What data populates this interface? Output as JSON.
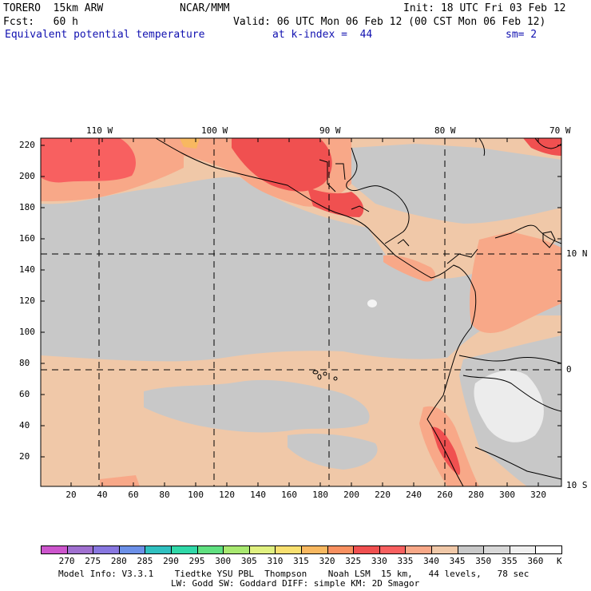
{
  "header": {
    "model": "TORERO  15km ARW",
    "org": "NCAR/MMM",
    "init": "Init: 18 UTC Fri 03 Feb 12",
    "fcst": "Fcst:   60 h",
    "valid": "Valid: 06 UTC Mon 06 Feb 12 (00 CST Mon 06 Feb 12)",
    "field": "Equivalent potential temperature",
    "kindex": "at k-index =  44",
    "sm": "sm= 2"
  },
  "map": {
    "top_lon_labels": [
      "110 W",
      "100 W",
      "90 W",
      "80 W",
      "70 W"
    ],
    "right_lat_labels": [
      "10 N",
      "0",
      "10 S"
    ],
    "left_ticks": [
      "220",
      "200",
      "180",
      "160",
      "140",
      "120",
      "100",
      "80",
      "60",
      "40",
      "20"
    ],
    "bottom_ticks": [
      "20",
      "40",
      "60",
      "80",
      "100",
      "120",
      "140",
      "160",
      "180",
      "200",
      "220",
      "240",
      "260",
      "280",
      "300",
      "320"
    ]
  },
  "colorbar": {
    "unit": "K",
    "labels": [
      "270",
      "275",
      "280",
      "285",
      "290",
      "295",
      "300",
      "305",
      "310",
      "315",
      "320",
      "325",
      "330",
      "335",
      "340",
      "345",
      "350",
      "355",
      "360"
    ],
    "colors": [
      "#cc55cc",
      "#a070d0",
      "#8877e0",
      "#6c90e8",
      "#30c0c0",
      "#30d8a8",
      "#60e080",
      "#a8e870",
      "#e0f080",
      "#f8e070",
      "#f8b860",
      "#f89060",
      "#f05050",
      "#f86060",
      "#f8a888",
      "#f0c8a8",
      "#c8c8c8",
      "#d8d8d8",
      "#f0f0f0",
      "#ffffff"
    ]
  },
  "footer": {
    "line1": "Model Info: V3.3.1    Tiedtke YSU PBL  Thompson    Noah LSM  15 km,   44 levels,   78 sec",
    "line2": "LW: Godd SW: Goddard DIFF: simple KM: 2D Smagor"
  }
}
